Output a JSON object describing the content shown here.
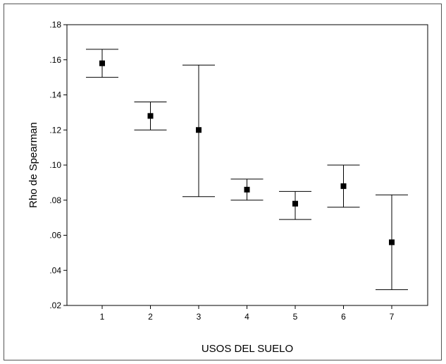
{
  "chart_data": {
    "type": "errorbar",
    "xlabel": "USOS DEL SUELO",
    "ylabel": "Rho de Spearman",
    "ylim": [
      0.02,
      0.18
    ],
    "yticks": [
      ".02",
      ".04",
      ".06",
      ".08",
      ".10",
      ".12",
      ".14",
      ".16",
      ".18"
    ],
    "ytick_values": [
      0.02,
      0.04,
      0.06,
      0.08,
      0.1,
      0.12,
      0.14,
      0.16,
      0.18
    ],
    "categories": [
      "1",
      "2",
      "3",
      "4",
      "5",
      "6",
      "7"
    ],
    "series": [
      {
        "mean": [
          0.158,
          0.128,
          0.12,
          0.086,
          0.078,
          0.088,
          0.056
        ],
        "lower": [
          0.15,
          0.12,
          0.082,
          0.08,
          0.069,
          0.076,
          0.029
        ],
        "upper": [
          0.166,
          0.136,
          0.157,
          0.092,
          0.085,
          0.1,
          0.083
        ]
      }
    ],
    "grid": false,
    "colors": {
      "marks": "#000000",
      "frame": "#555555"
    }
  }
}
